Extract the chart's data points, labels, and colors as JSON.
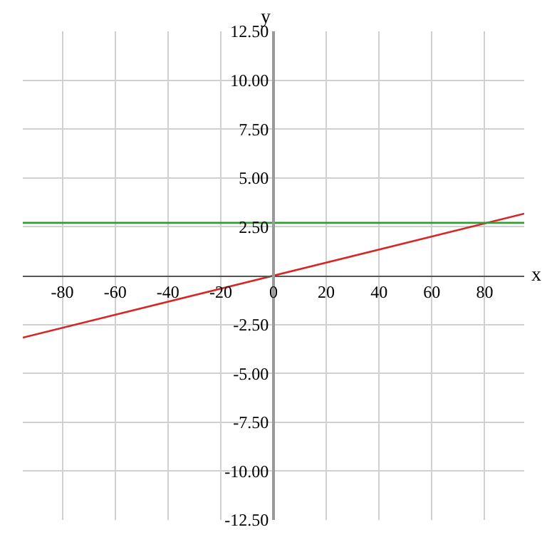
{
  "chart_data": {
    "type": "line",
    "xlabel": "x",
    "ylabel": "y",
    "x": [
      -95,
      95
    ],
    "series": [
      {
        "color": "#d62728",
        "values": [
          -3.17,
          3.17
        ]
      },
      {
        "color": "#2ca02c",
        "values": [
          2.7,
          2.7
        ]
      }
    ],
    "xlim": [
      -95,
      95
    ],
    "ylim": [
      -12.5,
      12.5
    ],
    "xticks": [
      -80,
      -60,
      -40,
      -20,
      0,
      20,
      40,
      60,
      80
    ],
    "yticks": [
      {
        "value": -12.5,
        "label": "-12.50"
      },
      {
        "value": -10,
        "label": "-10.00"
      },
      {
        "value": -7.5,
        "label": "-7.50"
      },
      {
        "value": -5,
        "label": "-5.00"
      },
      {
        "value": -2.5,
        "label": "-2.50"
      },
      {
        "value": 2.5,
        "label": "2.50"
      },
      {
        "value": 5,
        "label": "5.00"
      },
      {
        "value": 7.5,
        "label": "7.50"
      },
      {
        "value": 10,
        "label": "10.00"
      },
      {
        "value": 12.5,
        "label": "12.50"
      }
    ],
    "grid": true,
    "marker": "none",
    "line_style": "solid"
  }
}
